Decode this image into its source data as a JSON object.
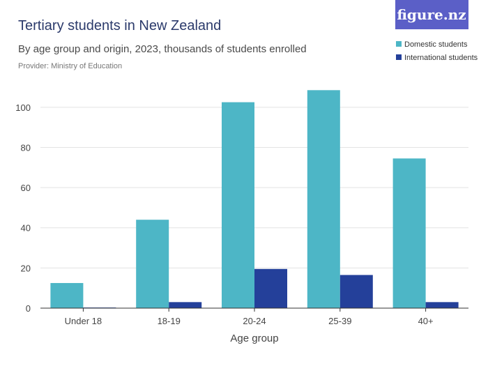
{
  "header": {
    "title": "Tertiary students in New Zealand",
    "subtitle": "By age group and origin, 2023, thousands of students enrolled",
    "provider": "Provider: Ministry of Education"
  },
  "logo": {
    "text": "figure.nz",
    "color": "#5b5fc7"
  },
  "chart_data": {
    "type": "bar",
    "title": "Tertiary students in New Zealand",
    "xlabel": "Age group",
    "ylabel": "",
    "categories": [
      "Under 18",
      "18-19",
      "20-24",
      "25-39",
      "40+"
    ],
    "ylim": [
      0,
      110
    ],
    "yticks": [
      0,
      20,
      40,
      60,
      80,
      100
    ],
    "grid": true,
    "legend_position": "top-right",
    "series": [
      {
        "name": "Domestic students",
        "color": "#4db6c6",
        "values": [
          12.5,
          44,
          102.5,
          108.5,
          74.5
        ]
      },
      {
        "name": "International students",
        "color": "#24409a",
        "values": [
          0.3,
          3,
          19.5,
          16.5,
          3
        ]
      }
    ]
  }
}
